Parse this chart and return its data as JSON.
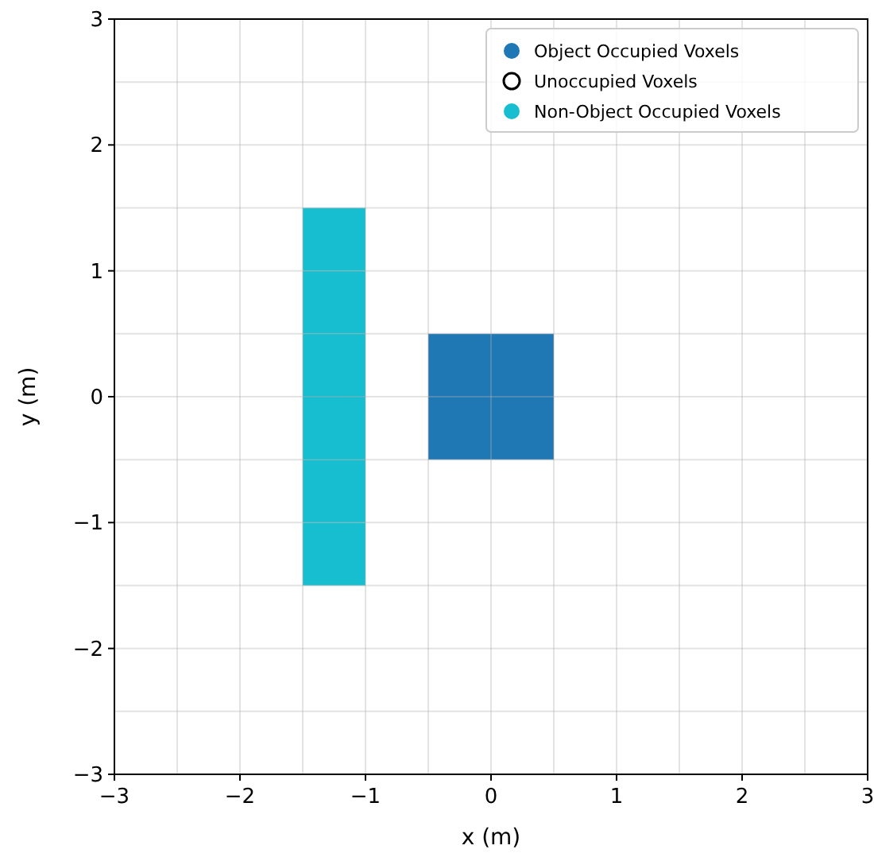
{
  "chart_data": {
    "type": "scatter",
    "xlabel": "x (m)",
    "ylabel": "y (m)",
    "xlim": [
      -3,
      3
    ],
    "ylim": [
      -3,
      3
    ],
    "xticks": [
      {
        "value": -3,
        "label": "−3"
      },
      {
        "value": -2.5,
        "label": null
      },
      {
        "value": -2,
        "label": "−2"
      },
      {
        "value": -1.5,
        "label": null
      },
      {
        "value": -1,
        "label": "−1"
      },
      {
        "value": -0.5,
        "label": null
      },
      0,
      {
        "value": 0.5,
        "label": null
      },
      1,
      {
        "value": 1.5,
        "label": null
      },
      2,
      {
        "value": 2.5,
        "label": null
      },
      3
    ],
    "yticks": [
      {
        "value": -3,
        "label": "−3"
      },
      {
        "value": -2.5,
        "label": null
      },
      {
        "value": -2,
        "label": "−2"
      },
      {
        "value": -1.5,
        "label": null
      },
      {
        "value": -1,
        "label": "−1"
      },
      {
        "value": -0.5,
        "label": null
      },
      0,
      {
        "value": 0.5,
        "label": null
      },
      1,
      {
        "value": 1.5,
        "label": null
      },
      2,
      {
        "value": 2.5,
        "label": null
      },
      3
    ],
    "grid": true,
    "legend": "top right",
    "marker": "square",
    "series": [
      {
        "name": "Object Occupied Voxels",
        "color": "#1f77b4",
        "x": [
          -0.25,
          0.25,
          -0.25,
          0.25
        ],
        "values": [
          -0.25,
          -0.25,
          0.25,
          0.25
        ]
      },
      {
        "name": "Unoccupied Voxels",
        "color": "#ffffff"
      },
      {
        "name": "Non-Object Occupied Voxels",
        "color": "#17becf",
        "x": [
          -1.25,
          -1.25,
          -1.25,
          -1.25,
          -1.25,
          -1.25
        ],
        "values": [
          -1.25,
          -0.75,
          -0.25,
          0.25,
          0.75,
          1.25
        ]
      }
    ]
  }
}
